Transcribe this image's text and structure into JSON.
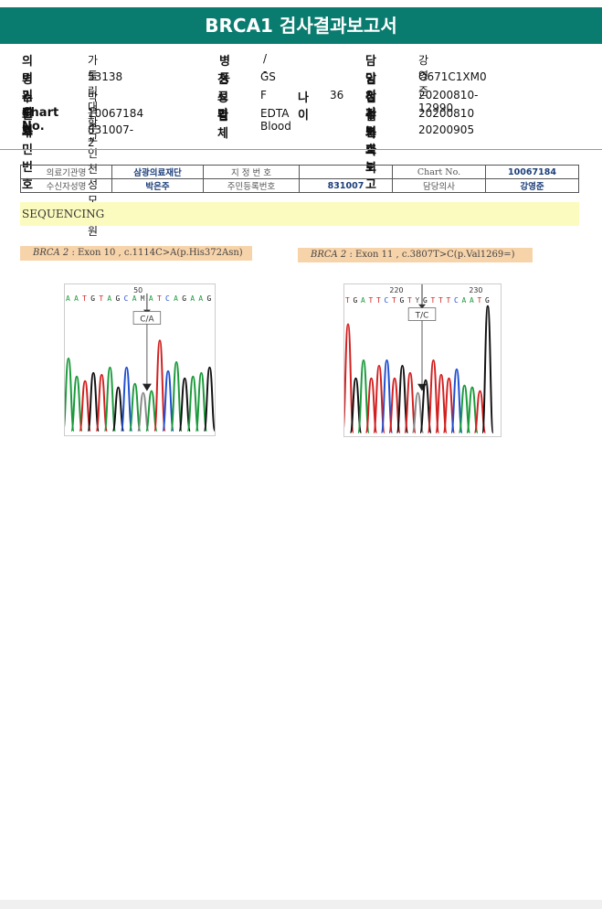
{
  "header": {
    "title": "BRCA1 검사결과보고서"
  },
  "patient": {
    "institution_label": "의뢰기관명",
    "institution": "가톨릭대학교 인천성모병원",
    "ward_label": "병동",
    "ward": "/ -",
    "doctor_label": "담당의사",
    "doctor": "강영준",
    "hospital_code_label": "병원코드",
    "hospital_code": "53138",
    "dept_label": "진료과",
    "dept": "GS",
    "clinical_label": "임상정보",
    "clinical": "O671C1XM0",
    "name_label": "수진자",
    "name": "박은주",
    "sex_label": "성별",
    "sex": "F",
    "age_label": "나이",
    "age": "36",
    "receipt_label": "접수번호",
    "receipt": "20200810-12990",
    "chart_label": "Chart No.",
    "chart": "10067184",
    "specimen_label": "검체",
    "specimen": "EDTA Blood",
    "request_label": "검사의뢰",
    "request": "20200810",
    "rrn_label": "주민번호",
    "rrn": "831007-2",
    "report_label": "결과보고",
    "report": "20200905"
  },
  "subtable": {
    "inst_label": "의료기관명",
    "inst": "삼광의료재단",
    "code_label": "지 정 번 호",
    "code": "",
    "chart_label": "Chart No.",
    "chart": "10067184",
    "pname_label": "수신자성명",
    "pname": "박은주",
    "rrn_label": "주민등록번호",
    "rrn": "831007",
    "doctor_label": "담당의사",
    "doctor": "강영준"
  },
  "section": {
    "title": "SEQUENCING"
  },
  "variants": [
    {
      "gene": "BRCA 2",
      "desc": ": Exon 10 , c.1114C>A(p.His372Asn)",
      "position": "50",
      "call": "C/A",
      "sequence": "A A T G T A G C A M A T C A G A A G"
    },
    {
      "gene": "BRCA 2",
      "desc": ": Exon 11 , c.3807T>C(p.Val1269=)",
      "position_left": "220",
      "position_right": "230",
      "call": "T/C",
      "sequence": "T G A T T C T G T Y G T T T C A A T G"
    }
  ],
  "colors": {
    "brand": "#0a7b6f",
    "highlight": "#fbfbbf",
    "variant_label": "#f7d3aa",
    "A": "#1a9a3a",
    "C": "#1f4fd0",
    "G": "#111111",
    "T": "#d21f1f"
  }
}
